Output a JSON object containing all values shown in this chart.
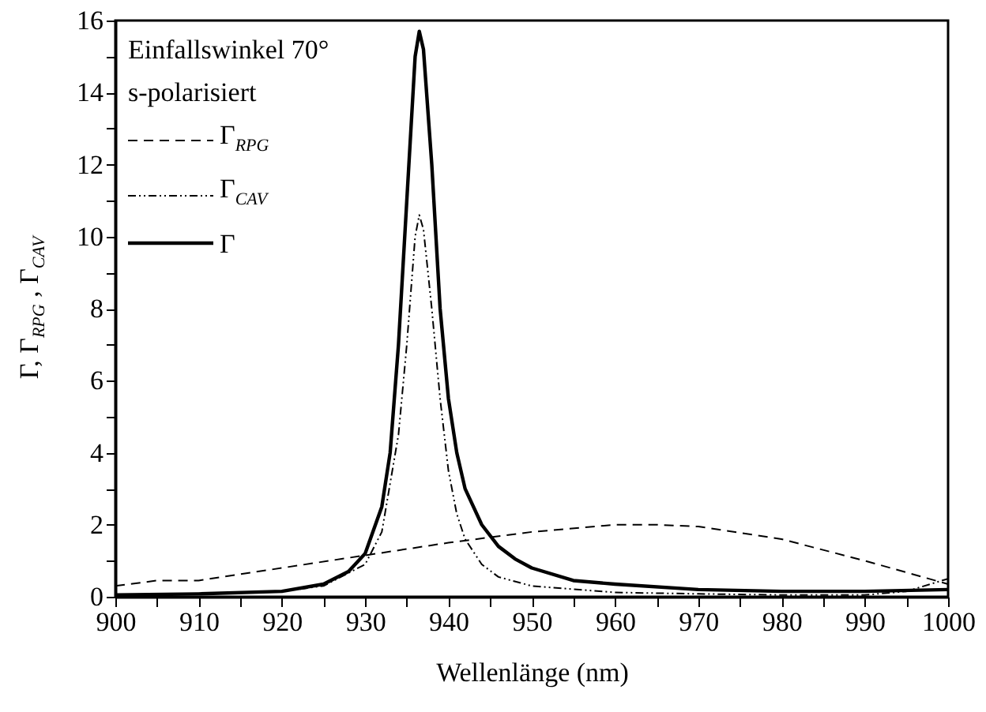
{
  "chart_data": {
    "type": "line",
    "xlabel": "Wellenlänge (nm)",
    "ylabel": "Γ, Γ$_{RPG}$ , Γ$_{CAV}$",
    "annotations": [
      "Einfallswinkel 70°",
      "s-polarisiert"
    ],
    "legend": "top left",
    "grid": false,
    "marker": "none",
    "xlim": [
      900,
      1000
    ],
    "ylim": [
      0,
      16
    ],
    "xticks": [
      900,
      {
        "value": 905,
        "label": null
      },
      910,
      {
        "value": 915,
        "label": null
      },
      920,
      {
        "value": 925,
        "label": null
      },
      930,
      {
        "value": 935,
        "label": null
      },
      940,
      {
        "value": 945,
        "label": null
      },
      950,
      {
        "value": 955,
        "label": null
      },
      960,
      {
        "value": 965,
        "label": null
      },
      970,
      {
        "value": 975,
        "label": null
      },
      980,
      {
        "value": 985,
        "label": null
      },
      990,
      {
        "value": 995,
        "label": null
      },
      1000
    ],
    "yticks": [
      0,
      {
        "value": 1,
        "label": null
      },
      2,
      {
        "value": 3,
        "label": null
      },
      4,
      {
        "value": 5,
        "label": null
      },
      6,
      {
        "value": 7,
        "label": null
      },
      8,
      {
        "value": 9,
        "label": null
      },
      10,
      {
        "value": 11,
        "label": null
      },
      12,
      {
        "value": 13,
        "label": null
      },
      14,
      {
        "value": 15,
        "label": null
      },
      16
    ],
    "series": [
      {
        "name": "Γ$_{RPG}$",
        "color": "#000000",
        "line_style": "dashed",
        "x": [
          900,
          905,
          910,
          920,
          930,
          940,
          950,
          960,
          965,
          970,
          980,
          990,
          1000
        ],
        "values": [
          0.3,
          0.45,
          0.45,
          0.8,
          1.15,
          1.5,
          1.8,
          2.0,
          2.0,
          1.95,
          1.6,
          1.0,
          0.35
        ]
      },
      {
        "name": "Γ$_{CAV}$",
        "color": "#000000",
        "line_style": "dotted",
        "x": [
          900,
          910,
          920,
          925,
          930,
          932,
          934,
          935,
          936,
          936.5,
          937,
          938,
          939,
          940,
          941,
          942,
          944,
          946,
          950,
          960,
          970,
          980,
          990,
          995,
          1000
        ],
        "values": [
          0.05,
          0.07,
          0.15,
          0.3,
          0.9,
          1.8,
          4.5,
          7,
          10,
          10.6,
          10.2,
          8,
          5.5,
          3.5,
          2.3,
          1.6,
          0.9,
          0.55,
          0.3,
          0.12,
          0.08,
          0.05,
          0.05,
          0.15,
          0.5
        ]
      },
      {
        "name": "Γ",
        "color": "#000000",
        "line_style": "solid",
        "x": [
          900,
          910,
          920,
          925,
          928,
          930,
          932,
          933,
          934,
          935,
          936,
          936.5,
          937,
          938,
          939,
          940,
          941,
          942,
          944,
          946,
          948,
          950,
          955,
          960,
          970,
          980,
          990,
          1000
        ],
        "values": [
          0.05,
          0.08,
          0.15,
          0.35,
          0.7,
          1.2,
          2.5,
          4,
          7,
          11,
          15,
          15.7,
          15.2,
          12,
          8,
          5.5,
          4,
          3,
          2,
          1.4,
          1.05,
          0.8,
          0.45,
          0.35,
          0.2,
          0.15,
          0.15,
          0.2
        ]
      }
    ]
  }
}
